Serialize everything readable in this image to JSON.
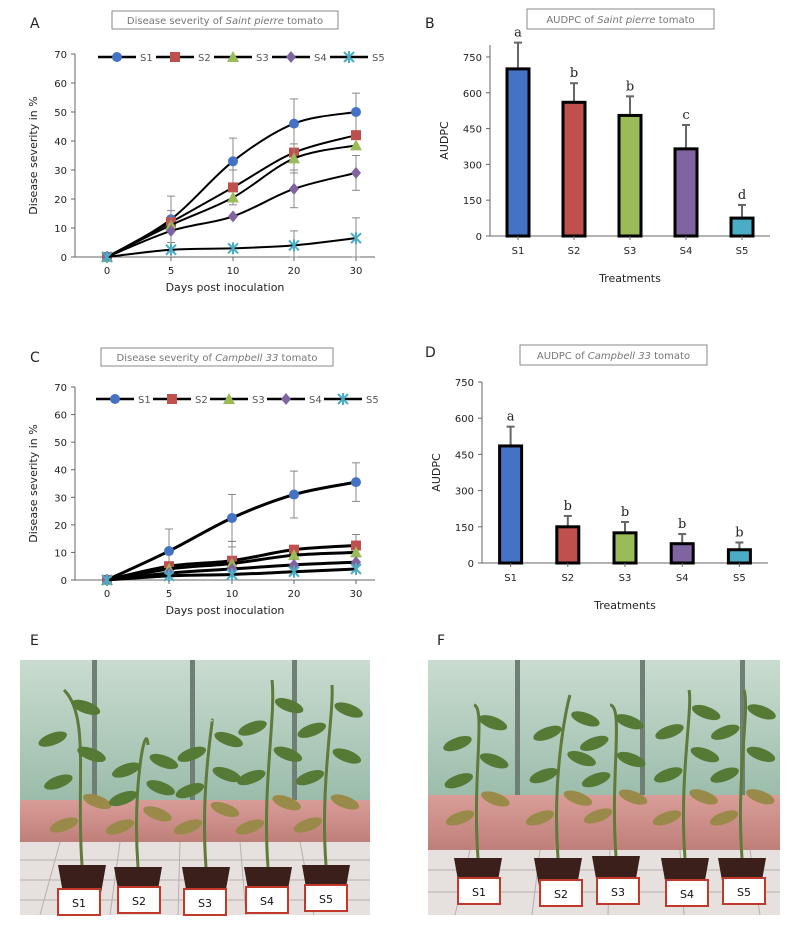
{
  "panel_letters": {
    "A": "A",
    "B": "B",
    "C": "C",
    "D": "D",
    "E": "E",
    "F": "F"
  },
  "colors": {
    "S1": "#4472c4",
    "S2": "#c0504d",
    "S3": "#9bbb59",
    "S4": "#8064a2",
    "S5": "#4bacc6"
  },
  "chart_data": [
    {
      "id": "A",
      "type": "line",
      "title_prefix": "Disease severity of",
      "title_cultivar": "Saint pierre",
      "title_suffix": "tomato",
      "xlabel": "Days post inoculation",
      "ylabel": "Disease severity in %",
      "x": [
        0,
        5,
        10,
        20,
        30
      ],
      "ylim": [
        0,
        70
      ],
      "yticks": [
        0,
        10,
        20,
        30,
        40,
        50,
        60,
        70
      ],
      "legend": [
        "S1",
        "S2",
        "S3",
        "S4",
        "S5"
      ],
      "series": [
        {
          "name": "S1",
          "marker": "circle",
          "values": [
            0,
            13,
            33,
            46,
            50
          ],
          "errors": [
            0,
            8,
            8,
            8.5,
            6.5
          ]
        },
        {
          "name": "S2",
          "marker": "square",
          "values": [
            0,
            12,
            24,
            36,
            42
          ],
          "errors": [
            0,
            0,
            6,
            0,
            0
          ]
        },
        {
          "name": "S3",
          "marker": "triangle",
          "values": [
            0,
            11,
            20.5,
            34,
            38.5
          ],
          "errors": [
            0,
            0,
            0,
            5,
            0
          ]
        },
        {
          "name": "S4",
          "marker": "diamond",
          "values": [
            0,
            9,
            14,
            23.5,
            29
          ],
          "errors": [
            0,
            7,
            0,
            6.5,
            6
          ]
        },
        {
          "name": "S5",
          "marker": "star",
          "values": [
            0,
            2.5,
            3,
            4,
            6.5
          ],
          "errors": [
            0,
            0,
            0,
            5,
            7
          ]
        }
      ]
    },
    {
      "id": "B",
      "type": "bar",
      "title_prefix": "AUDPC of",
      "title_cultivar": "Saint pierre",
      "title_suffix": "tomato",
      "xlabel": "Treatments",
      "ylabel": "AUDPC",
      "categories": [
        "S1",
        "S2",
        "S3",
        "S4",
        "S5"
      ],
      "values": [
        700,
        560,
        505,
        365,
        75
      ],
      "errors": [
        110,
        80,
        80,
        100,
        55
      ],
      "letters": [
        "a",
        "b",
        "b",
        "c",
        "d"
      ],
      "ylim": [
        0,
        800
      ],
      "yticks": [
        0,
        150,
        300,
        450,
        600,
        750
      ]
    },
    {
      "id": "C",
      "type": "line",
      "title_prefix": "Disease severity of",
      "title_cultivar": "Campbell 33",
      "title_suffix": "tomato",
      "xlabel": "Days post inoculation",
      "ylabel": "Disease severity in %",
      "x": [
        0,
        5,
        10,
        20,
        30
      ],
      "ylim": [
        0,
        70
      ],
      "yticks": [
        0,
        10,
        20,
        30,
        40,
        50,
        60,
        70
      ],
      "legend": [
        "S1",
        "S2",
        "S3",
        "S4",
        "S5"
      ],
      "series": [
        {
          "name": "S1",
          "marker": "circle",
          "values": [
            0,
            10.5,
            22.5,
            31,
            35.5
          ],
          "errors": [
            0,
            8,
            8.5,
            8.5,
            7
          ]
        },
        {
          "name": "S2",
          "marker": "square",
          "values": [
            0,
            5,
            7,
            11,
            12.5
          ],
          "errors": [
            0,
            0,
            0,
            0,
            4
          ]
        },
        {
          "name": "S3",
          "marker": "triangle",
          "values": [
            0,
            4,
            6,
            9,
            10
          ],
          "errors": [
            0,
            0,
            8,
            0,
            0
          ]
        },
        {
          "name": "S4",
          "marker": "diamond",
          "values": [
            0,
            2.5,
            4,
            5.5,
            6.5
          ],
          "errors": [
            0,
            0,
            8,
            0,
            0
          ]
        },
        {
          "name": "S5",
          "marker": "star",
          "values": [
            0,
            1.5,
            2,
            3,
            4
          ],
          "errors": [
            0,
            0,
            0,
            0,
            0
          ]
        }
      ]
    },
    {
      "id": "D",
      "type": "bar",
      "title_prefix": "AUDPC of",
      "title_cultivar": "Campbell 33",
      "title_suffix": "tomato",
      "xlabel": "Treatments",
      "ylabel": "AUDPC",
      "categories": [
        "S1",
        "S2",
        "S3",
        "S4",
        "S5"
      ],
      "values": [
        485,
        150,
        125,
        80,
        55
      ],
      "errors": [
        80,
        45,
        45,
        40,
        30
      ],
      "letters": [
        "a",
        "b",
        "b",
        "b",
        "b"
      ],
      "ylim": [
        0,
        750
      ],
      "yticks": [
        0,
        150,
        300,
        450,
        600,
        750
      ]
    }
  ],
  "photos": {
    "E": {
      "labels": [
        "S1",
        "S2",
        "S3",
        "S4",
        "S5"
      ]
    },
    "F": {
      "labels": [
        "S1",
        "S2",
        "S3",
        "S4",
        "S5"
      ]
    }
  }
}
